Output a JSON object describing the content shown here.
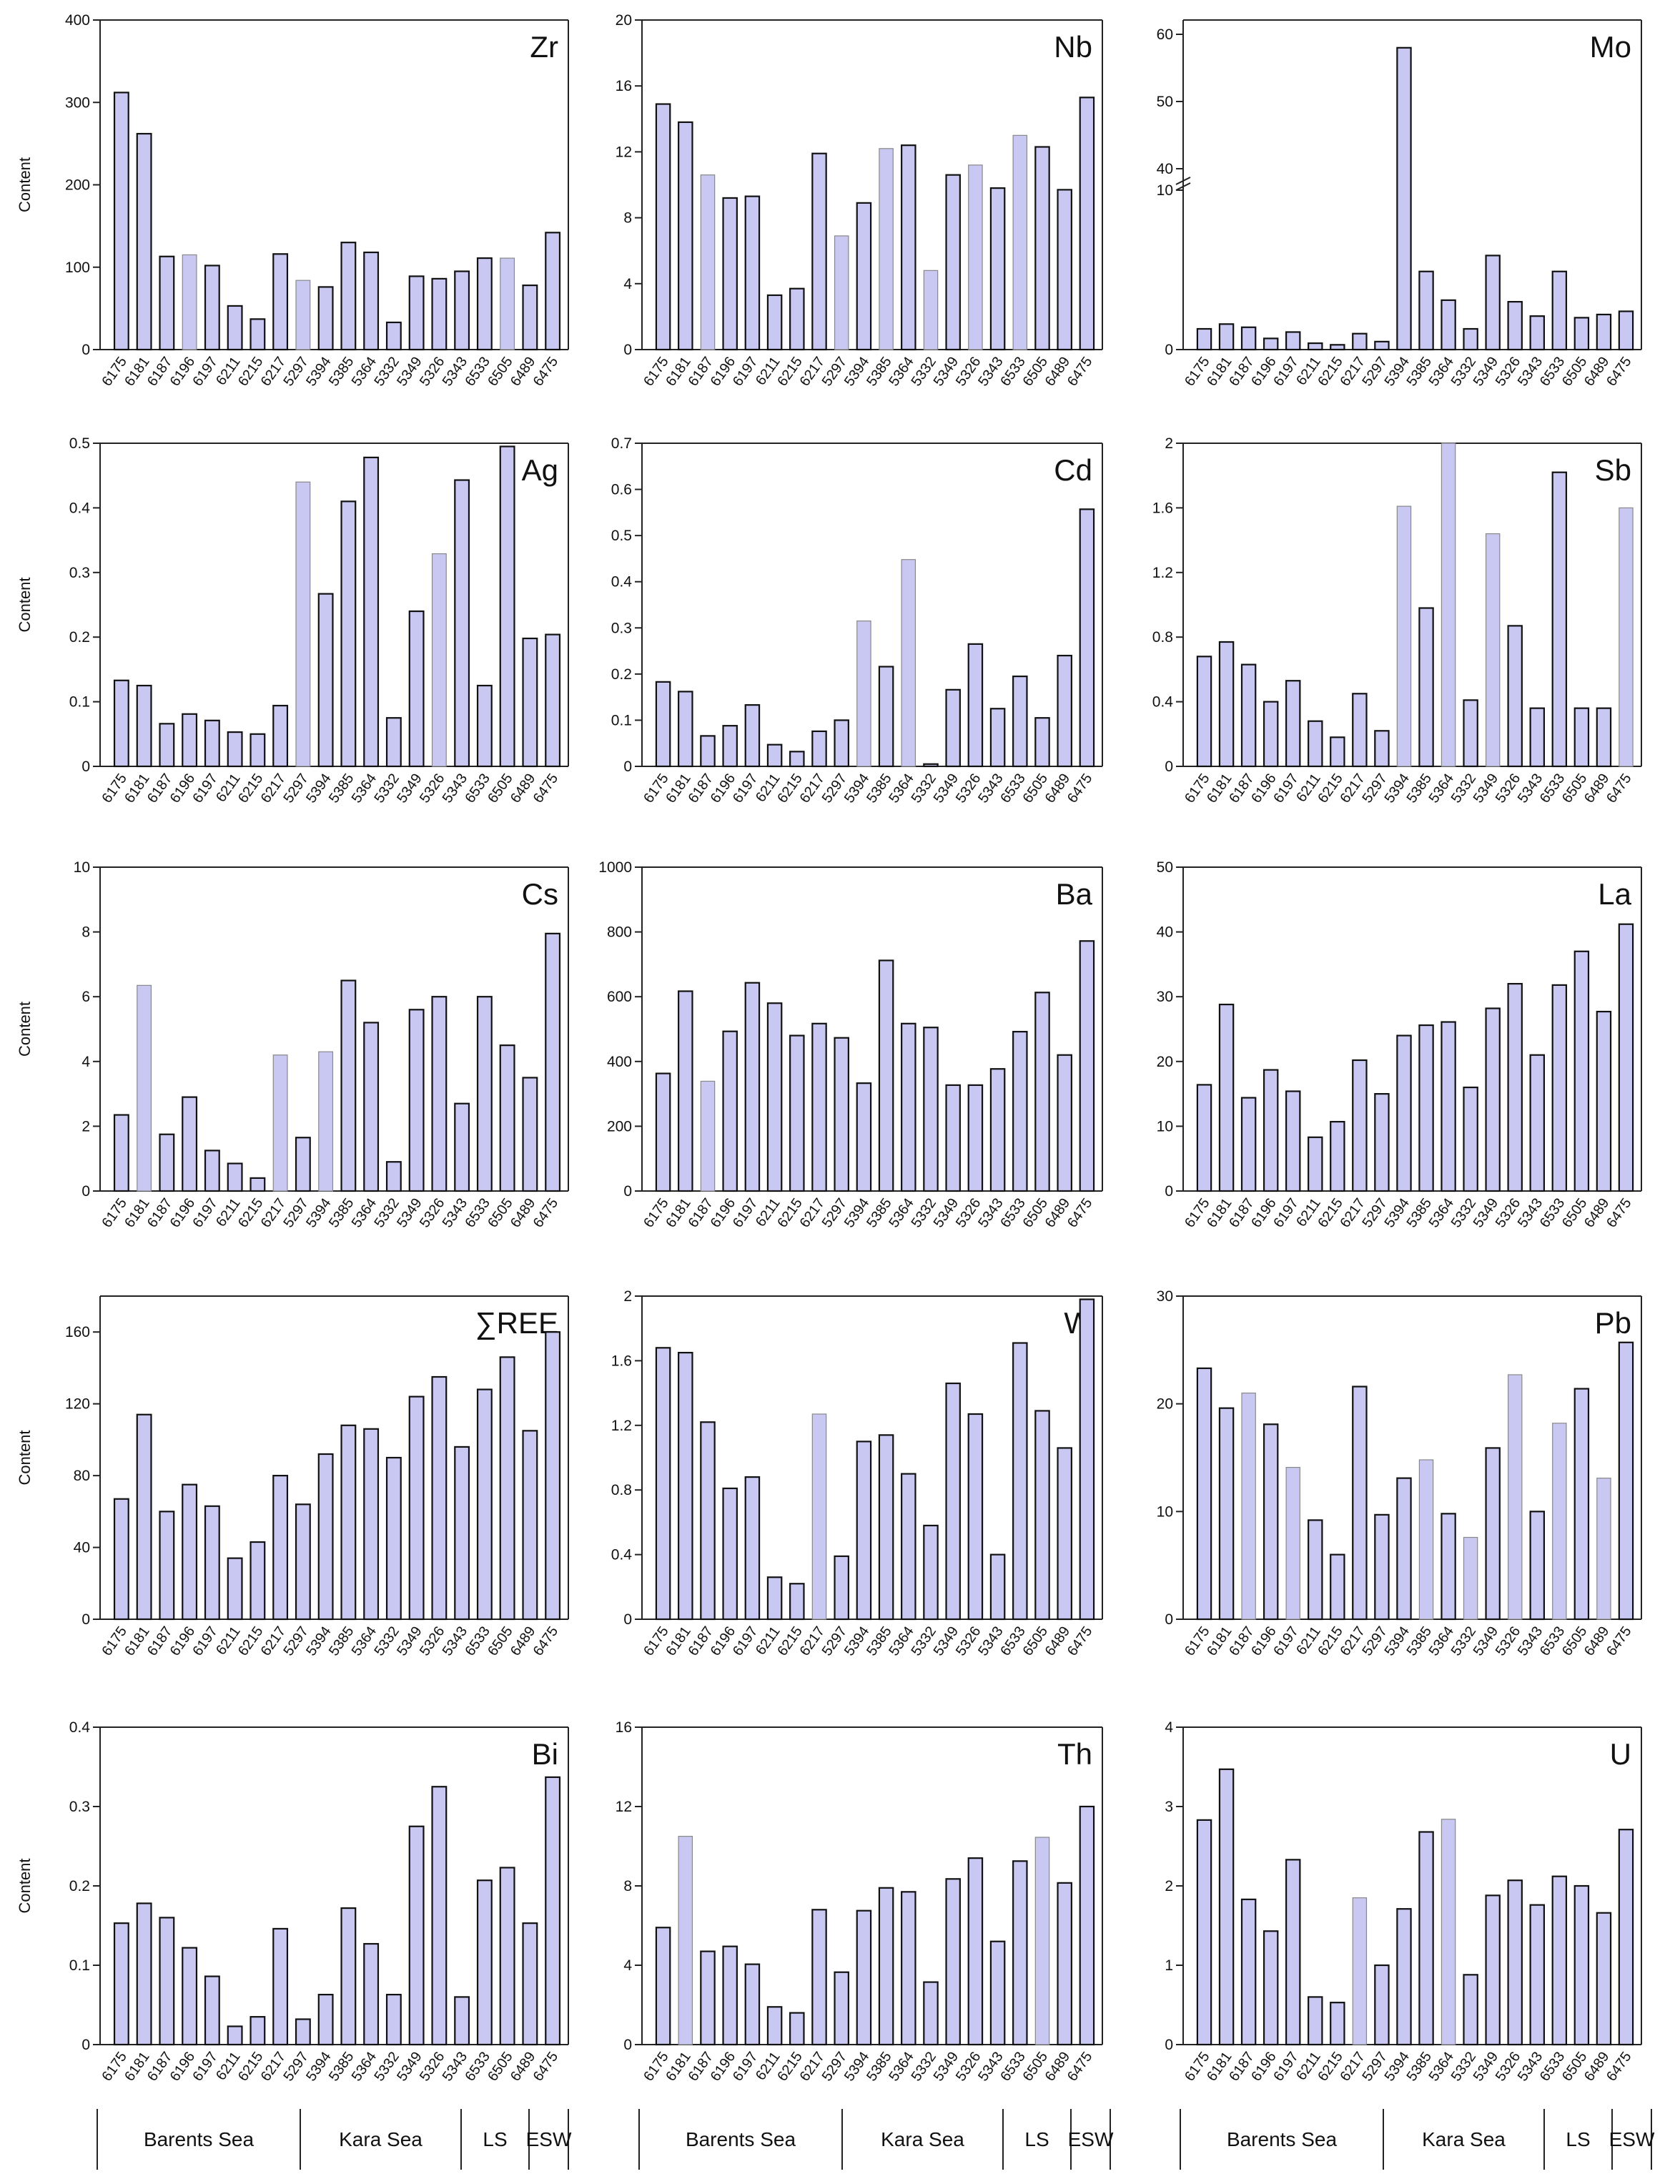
{
  "figure": {
    "y_axis_label": "Content",
    "sample_ids": [
      "6175",
      "6181",
      "6187",
      "6196",
      "6197",
      "6211",
      "6215",
      "6217",
      "5297",
      "5394",
      "5385",
      "5364",
      "5332",
      "5349",
      "5326",
      "5343",
      "6533",
      "6505",
      "6489",
      "6475"
    ],
    "region_labels": [
      "Barents Sea",
      "Kara Sea",
      "LS",
      "ESW"
    ]
  },
  "chart_data": [
    {
      "type": "bar",
      "title": "Zr",
      "ylabel": "Content",
      "ylim": [
        0,
        400
      ],
      "yticks": [
        0,
        100,
        200,
        300,
        400
      ],
      "categories": [
        "6175",
        "6181",
        "6187",
        "6196",
        "6197",
        "6211",
        "6215",
        "6217",
        "5297",
        "5394",
        "5385",
        "5364",
        "5332",
        "5349",
        "5326",
        "5343",
        "6533",
        "6505",
        "6489",
        "6475"
      ],
      "values": [
        312,
        262,
        113,
        115,
        102,
        53,
        37,
        116,
        84,
        76,
        130,
        118,
        33,
        89,
        86,
        95,
        111,
        111,
        78,
        142
      ],
      "edge": [
        "d",
        "d",
        "d",
        "l",
        "d",
        "d",
        "d",
        "d",
        "l",
        "d",
        "d",
        "d",
        "d",
        "d",
        "d",
        "d",
        "d",
        "l",
        "d",
        "d"
      ]
    },
    {
      "type": "bar",
      "title": "Nb",
      "ylabel": "",
      "ylim": [
        0,
        20
      ],
      "yticks": [
        0,
        4,
        8,
        12,
        16,
        20
      ],
      "categories": [
        "6175",
        "6181",
        "6187",
        "6196",
        "6197",
        "6211",
        "6215",
        "6217",
        "5297",
        "5394",
        "5385",
        "5364",
        "5332",
        "5349",
        "5326",
        "5343",
        "6533",
        "6505",
        "6489",
        "6475"
      ],
      "values": [
        14.9,
        13.8,
        10.6,
        9.2,
        9.3,
        3.3,
        3.7,
        11.9,
        6.9,
        8.9,
        12.2,
        12.4,
        4.8,
        10.6,
        11.2,
        9.8,
        13.0,
        12.3,
        9.7,
        15.3
      ],
      "edge": [
        "d",
        "d",
        "l",
        "d",
        "d",
        "d",
        "d",
        "d",
        "l",
        "d",
        "l",
        "d",
        "l",
        "d",
        "l",
        "d",
        "l",
        "d",
        "d",
        "d"
      ]
    },
    {
      "type": "bar",
      "title": "Mo",
      "ylabel": "",
      "broken_axis": true,
      "yticks": [
        0,
        10,
        40,
        50,
        60
      ],
      "categories": [
        "6175",
        "6181",
        "6187",
        "6196",
        "6197",
        "6211",
        "6215",
        "6217",
        "5297",
        "5394",
        "5385",
        "5364",
        "5332",
        "5349",
        "5326",
        "5343",
        "6533",
        "6505",
        "6489",
        "6475"
      ],
      "values": [
        1.3,
        1.6,
        1.4,
        0.7,
        1.1,
        0.4,
        0.3,
        1.0,
        0.5,
        58,
        4.9,
        3.1,
        1.3,
        5.9,
        3.0,
        2.1,
        4.9,
        2.0,
        2.2,
        2.4
      ],
      "edge": [
        "d",
        "d",
        "d",
        "d",
        "d",
        "d",
        "d",
        "d",
        "d",
        "d",
        "d",
        "d",
        "d",
        "d",
        "d",
        "d",
        "d",
        "d",
        "d",
        "d"
      ]
    },
    {
      "type": "bar",
      "title": "Ag",
      "ylabel": "Content",
      "ylim": [
        0,
        0.5
      ],
      "yticks": [
        0,
        0.1,
        0.2,
        0.3,
        0.4,
        0.5
      ],
      "categories": [
        "6175",
        "6181",
        "6187",
        "6196",
        "6197",
        "6211",
        "6215",
        "6217",
        "5297",
        "5394",
        "5385",
        "5364",
        "5332",
        "5349",
        "5326",
        "5343",
        "6533",
        "6505",
        "6489",
        "6475"
      ],
      "values": [
        0.133,
        0.125,
        0.066,
        0.081,
        0.071,
        0.053,
        0.05,
        0.094,
        0.44,
        0.267,
        0.41,
        0.478,
        0.075,
        0.24,
        0.329,
        0.443,
        0.125,
        0.495,
        0.198,
        0.204
      ],
      "edge": [
        "d",
        "d",
        "d",
        "d",
        "d",
        "d",
        "d",
        "d",
        "l",
        "d",
        "d",
        "d",
        "d",
        "d",
        "l",
        "d",
        "d",
        "d",
        "d",
        "d"
      ]
    },
    {
      "type": "bar",
      "title": "Cd",
      "ylabel": "",
      "ylim": [
        0,
        0.7
      ],
      "yticks": [
        0,
        0.1,
        0.2,
        0.3,
        0.4,
        0.5,
        0.6,
        0.7
      ],
      "categories": [
        "6175",
        "6181",
        "6187",
        "6196",
        "6197",
        "6211",
        "6215",
        "6217",
        "5297",
        "5394",
        "5385",
        "5364",
        "5332",
        "5349",
        "5326",
        "5343",
        "6533",
        "6505",
        "6489",
        "6475"
      ],
      "values": [
        0.183,
        0.162,
        0.066,
        0.088,
        0.133,
        0.047,
        0.032,
        0.076,
        0.1,
        0.315,
        0.216,
        0.448,
        0.005,
        0.166,
        0.265,
        0.125,
        0.195,
        0.105,
        0.24,
        0.557
      ],
      "edge": [
        "d",
        "d",
        "d",
        "d",
        "d",
        "d",
        "d",
        "d",
        "d",
        "l",
        "d",
        "l",
        "d",
        "d",
        "d",
        "d",
        "d",
        "d",
        "d",
        "d"
      ]
    },
    {
      "type": "bar",
      "title": "Sb",
      "ylabel": "",
      "ylim": [
        0,
        2
      ],
      "yticks": [
        0,
        0.4,
        0.8,
        1.2,
        1.6,
        2
      ],
      "categories": [
        "6175",
        "6181",
        "6187",
        "6196",
        "6197",
        "6211",
        "6215",
        "6217",
        "5297",
        "5394",
        "5385",
        "5364",
        "5332",
        "5349",
        "5326",
        "5343",
        "6533",
        "6505",
        "6489",
        "6475"
      ],
      "values": [
        0.68,
        0.77,
        0.63,
        0.4,
        0.53,
        0.28,
        0.18,
        0.45,
        0.22,
        1.61,
        0.98,
        2.0,
        0.41,
        1.44,
        0.87,
        0.36,
        1.82,
        0.36,
        0.36,
        1.6
      ],
      "edge": [
        "d",
        "d",
        "d",
        "d",
        "d",
        "d",
        "d",
        "d",
        "d",
        "l",
        "d",
        "l",
        "d",
        "l",
        "d",
        "d",
        "d",
        "d",
        "d",
        "l"
      ]
    },
    {
      "type": "bar",
      "title": "Cs",
      "ylabel": "Content",
      "ylim": [
        0,
        10
      ],
      "yticks": [
        0,
        2,
        4,
        6,
        8,
        10
      ],
      "categories": [
        "6175",
        "6181",
        "6187",
        "6196",
        "6197",
        "6211",
        "6215",
        "6217",
        "5297",
        "5394",
        "5385",
        "5364",
        "5332",
        "5349",
        "5326",
        "5343",
        "6533",
        "6505",
        "6489",
        "6475"
      ],
      "values": [
        2.35,
        6.35,
        1.75,
        2.9,
        1.25,
        0.85,
        0.4,
        4.2,
        1.65,
        4.3,
        6.5,
        5.2,
        0.9,
        5.6,
        6.0,
        2.7,
        6.0,
        4.5,
        3.5,
        7.95
      ],
      "edge": [
        "d",
        "l",
        "d",
        "d",
        "d",
        "d",
        "d",
        "l",
        "d",
        "l",
        "d",
        "d",
        "d",
        "d",
        "d",
        "d",
        "d",
        "d",
        "d",
        "d"
      ]
    },
    {
      "type": "bar",
      "title": "Ba",
      "ylabel": "",
      "ylim": [
        0,
        1000
      ],
      "yticks": [
        0,
        200,
        400,
        600,
        800,
        1000
      ],
      "categories": [
        "6175",
        "6181",
        "6187",
        "6196",
        "6197",
        "6211",
        "6215",
        "6217",
        "5297",
        "5394",
        "5385",
        "5364",
        "5332",
        "5349",
        "5326",
        "5343",
        "6533",
        "6505",
        "6489",
        "6475"
      ],
      "values": [
        363,
        617,
        339,
        493,
        643,
        580,
        480,
        517,
        473,
        333,
        712,
        517,
        505,
        327,
        327,
        377,
        492,
        613,
        420,
        772
      ],
      "edge": [
        "d",
        "d",
        "l",
        "d",
        "d",
        "d",
        "d",
        "d",
        "d",
        "d",
        "d",
        "d",
        "d",
        "d",
        "d",
        "d",
        "d",
        "d",
        "d",
        "d"
      ]
    },
    {
      "type": "bar",
      "title": "La",
      "ylabel": "",
      "ylim": [
        0,
        50
      ],
      "yticks": [
        0,
        10,
        20,
        30,
        40,
        50
      ],
      "categories": [
        "6175",
        "6181",
        "6187",
        "6196",
        "6197",
        "6211",
        "6215",
        "6217",
        "5297",
        "5394",
        "5385",
        "5364",
        "5332",
        "5349",
        "5326",
        "5343",
        "6533",
        "6505",
        "6489",
        "6475"
      ],
      "values": [
        16.4,
        28.8,
        14.4,
        18.7,
        15.4,
        8.3,
        10.7,
        20.2,
        15.0,
        24.0,
        25.6,
        26.1,
        16.0,
        28.2,
        32.0,
        21.0,
        31.8,
        37.0,
        27.7,
        41.2
      ],
      "edge": [
        "d",
        "d",
        "d",
        "d",
        "d",
        "d",
        "d",
        "d",
        "d",
        "d",
        "d",
        "d",
        "d",
        "d",
        "d",
        "d",
        "d",
        "d",
        "d",
        "d"
      ]
    },
    {
      "type": "bar",
      "title": "∑REE",
      "ylabel": "Content",
      "ylim": [
        0,
        180
      ],
      "yticks": [
        0,
        40,
        80,
        120,
        160
      ],
      "categories": [
        "6175",
        "6181",
        "6187",
        "6196",
        "6197",
        "6211",
        "6215",
        "6217",
        "5297",
        "5394",
        "5385",
        "5364",
        "5332",
        "5349",
        "5326",
        "5343",
        "6533",
        "6505",
        "6489",
        "6475"
      ],
      "values": [
        67,
        114,
        60,
        75,
        63,
        34,
        43,
        80,
        64,
        92,
        108,
        106,
        90,
        124,
        135,
        96,
        128,
        146,
        105,
        160
      ],
      "edge": [
        "d",
        "d",
        "d",
        "d",
        "d",
        "d",
        "d",
        "d",
        "d",
        "d",
        "d",
        "d",
        "d",
        "d",
        "d",
        "d",
        "d",
        "d",
        "d",
        "d"
      ]
    },
    {
      "type": "bar",
      "title": "W",
      "ylabel": "",
      "ylim": [
        0,
        2
      ],
      "yticks": [
        0,
        0.4,
        0.8,
        1.2,
        1.6,
        2
      ],
      "categories": [
        "6175",
        "6181",
        "6187",
        "6196",
        "6197",
        "6211",
        "6215",
        "6217",
        "5297",
        "5394",
        "5385",
        "5364",
        "5332",
        "5349",
        "5326",
        "5343",
        "6533",
        "6505",
        "6489",
        "6475"
      ],
      "values": [
        1.68,
        1.65,
        1.22,
        0.81,
        0.88,
        0.26,
        0.22,
        1.27,
        0.39,
        1.1,
        1.14,
        0.9,
        0.58,
        1.46,
        1.27,
        0.4,
        1.71,
        1.29,
        1.06,
        1.98
      ],
      "edge": [
        "d",
        "d",
        "d",
        "d",
        "d",
        "d",
        "d",
        "l",
        "d",
        "d",
        "d",
        "d",
        "d",
        "d",
        "d",
        "d",
        "d",
        "d",
        "d",
        "d"
      ]
    },
    {
      "type": "bar",
      "title": "Pb",
      "ylabel": "",
      "ylim": [
        0,
        30
      ],
      "yticks": [
        0,
        10,
        20,
        30
      ],
      "categories": [
        "6175",
        "6181",
        "6187",
        "6196",
        "6197",
        "6211",
        "6215",
        "6217",
        "5297",
        "5394",
        "5385",
        "5364",
        "5332",
        "5349",
        "5326",
        "5343",
        "6533",
        "6505",
        "6489",
        "6475"
      ],
      "values": [
        23.3,
        19.6,
        21.0,
        18.1,
        14.1,
        9.2,
        6.0,
        21.6,
        9.7,
        13.1,
        14.8,
        9.8,
        7.6,
        15.9,
        22.7,
        10.0,
        18.2,
        21.4,
        13.1,
        25.7
      ],
      "edge": [
        "d",
        "d",
        "l",
        "d",
        "l",
        "d",
        "d",
        "d",
        "d",
        "d",
        "l",
        "d",
        "l",
        "d",
        "l",
        "d",
        "l",
        "d",
        "l",
        "d"
      ]
    },
    {
      "type": "bar",
      "title": "Bi",
      "ylabel": "Content",
      "ylim": [
        0,
        0.4
      ],
      "yticks": [
        0,
        0.1,
        0.2,
        0.3,
        0.4
      ],
      "categories": [
        "6175",
        "6181",
        "6187",
        "6196",
        "6197",
        "6211",
        "6215",
        "6217",
        "5297",
        "5394",
        "5385",
        "5364",
        "5332",
        "5349",
        "5326",
        "5343",
        "6533",
        "6505",
        "6489",
        "6475"
      ],
      "values": [
        0.153,
        0.178,
        0.16,
        0.122,
        0.086,
        0.023,
        0.035,
        0.146,
        0.032,
        0.063,
        0.172,
        0.127,
        0.063,
        0.275,
        0.325,
        0.06,
        0.207,
        0.223,
        0.153,
        0.337
      ],
      "edge": [
        "d",
        "d",
        "d",
        "d",
        "d",
        "d",
        "d",
        "d",
        "d",
        "d",
        "d",
        "d",
        "d",
        "d",
        "d",
        "d",
        "d",
        "d",
        "d",
        "d"
      ]
    },
    {
      "type": "bar",
      "title": "Th",
      "ylabel": "",
      "ylim": [
        0,
        16
      ],
      "yticks": [
        0,
        4,
        8,
        12,
        16
      ],
      "categories": [
        "6175",
        "6181",
        "6187",
        "6196",
        "6197",
        "6211",
        "6215",
        "6217",
        "5297",
        "5394",
        "5385",
        "5364",
        "5332",
        "5349",
        "5326",
        "5343",
        "6533",
        "6505",
        "6489",
        "6475"
      ],
      "values": [
        5.9,
        10.5,
        4.7,
        4.95,
        4.05,
        1.9,
        1.6,
        6.8,
        3.65,
        6.75,
        7.9,
        7.7,
        3.15,
        8.35,
        9.4,
        5.2,
        9.25,
        10.45,
        8.15,
        12.0
      ],
      "edge": [
        "d",
        "l",
        "d",
        "d",
        "d",
        "d",
        "d",
        "d",
        "d",
        "d",
        "d",
        "d",
        "d",
        "d",
        "d",
        "d",
        "d",
        "l",
        "d",
        "d"
      ]
    },
    {
      "type": "bar",
      "title": "U",
      "ylabel": "",
      "ylim": [
        0,
        4
      ],
      "yticks": [
        0,
        1,
        2,
        3,
        4
      ],
      "categories": [
        "6175",
        "6181",
        "6187",
        "6196",
        "6197",
        "6211",
        "6215",
        "6217",
        "5297",
        "5394",
        "5385",
        "5364",
        "5332",
        "5349",
        "5326",
        "5343",
        "6533",
        "6505",
        "6489",
        "6475"
      ],
      "values": [
        2.83,
        3.47,
        1.83,
        1.43,
        2.33,
        0.6,
        0.53,
        1.85,
        1.0,
        1.71,
        2.68,
        2.84,
        0.88,
        1.88,
        2.07,
        1.76,
        2.12,
        2.0,
        1.66,
        2.71
      ],
      "edge": [
        "d",
        "d",
        "d",
        "d",
        "d",
        "d",
        "d",
        "l",
        "d",
        "d",
        "d",
        "l",
        "d",
        "d",
        "d",
        "d",
        "d",
        "d",
        "d",
        "d"
      ]
    }
  ]
}
